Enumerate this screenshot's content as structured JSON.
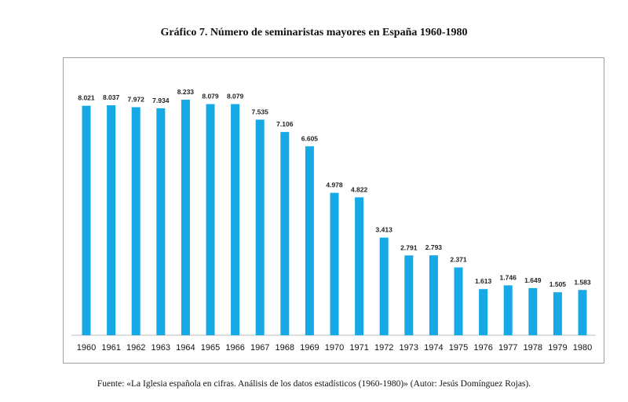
{
  "chart_data": {
    "type": "bar",
    "title": "Gráfico 7. Número de seminaristas mayores en España 1960-1980",
    "xlabel": "",
    "ylabel": "",
    "categories": [
      "1960",
      "1961",
      "1962",
      "1963",
      "1964",
      "1965",
      "1966",
      "1967",
      "1968",
      "1969",
      "1970",
      "1971",
      "1972",
      "1973",
      "1974",
      "1975",
      "1976",
      "1977",
      "1978",
      "1979",
      "1980"
    ],
    "values": [
      8021,
      8037,
      7972,
      7934,
      8233,
      8079,
      8079,
      7535,
      7106,
      6605,
      4978,
      4822,
      3413,
      2791,
      2793,
      2371,
      1613,
      1746,
      1649,
      1505,
      1583
    ],
    "value_labels": [
      "8.021",
      "8.037",
      "7.972",
      "7.934",
      "8.233",
      "8.079",
      "8.079",
      "7.535",
      "7.106",
      "6.605",
      "4.978",
      "4.822",
      "3.413",
      "2.791",
      "2.793",
      "2.371",
      "1.613",
      "1.746",
      "1.649",
      "1.505",
      "1.583"
    ],
    "ylim": [
      0,
      8233
    ],
    "grid": false,
    "bar_color": "#17a8e6",
    "source": "Fuente: «La Iglesia española en cifras. Análisis de los datos estadísticos (1960-1980)» (Autor: Jesús Domínguez Rojas)."
  }
}
